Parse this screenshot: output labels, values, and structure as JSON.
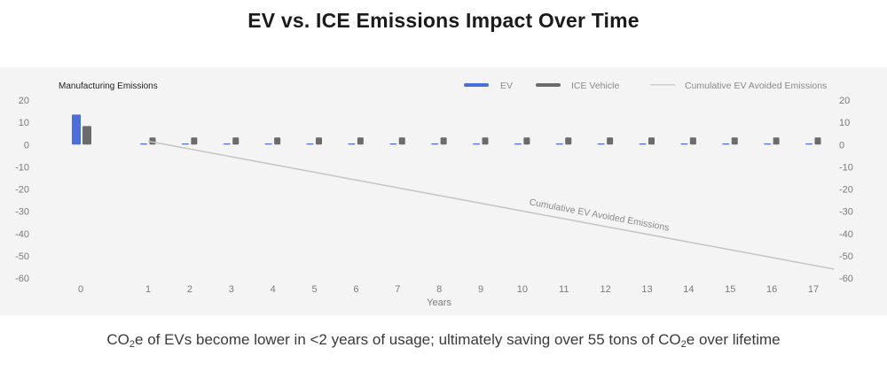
{
  "title": "EV vs. ICE Emissions Impact Over Time",
  "caption": {
    "before": "CO",
    "sub1": "2",
    "mid": "e of EVs become lower in <2 years of usage; ultimately saving over 55 tons of CO",
    "sub2": "2",
    "after": "e over lifetime"
  },
  "chart_data": {
    "type": "bar",
    "manufacturing_label": "Manufacturing Emissions",
    "xlabel": "Years",
    "ylim": [
      -60,
      20
    ],
    "yticks": [
      20,
      10,
      0,
      -10,
      -20,
      -30,
      -40,
      -50,
      -60
    ],
    "categories": [
      "0",
      "1",
      "2",
      "3",
      "4",
      "5",
      "6",
      "7",
      "8",
      "9",
      "10",
      "11",
      "12",
      "13",
      "14",
      "15",
      "16",
      "17"
    ],
    "series": [
      {
        "name": "EV",
        "color": "#4a6fdc",
        "values": [
          13.5,
          0.5,
          0.5,
          0.5,
          0.5,
          0.5,
          0.5,
          0.5,
          0.5,
          0.5,
          0.5,
          0.5,
          0.5,
          0.5,
          0.5,
          0.5,
          0.5,
          0.5
        ]
      },
      {
        "name": "ICE Vehicle",
        "color": "#6b6b6b",
        "values": [
          8.3,
          3.2,
          3.2,
          3.2,
          3.2,
          3.2,
          3.2,
          3.2,
          3.2,
          3.2,
          3.2,
          3.2,
          3.2,
          3.2,
          3.2,
          3.2,
          3.2,
          3.2
        ]
      }
    ],
    "line": {
      "name": "Cumulative EV Avoided Emissions",
      "annotation": "Cumulative EV Avoided  Emissions",
      "color": "#c4c4c4",
      "x": [
        1,
        17.5
      ],
      "y": [
        1.5,
        -56
      ]
    },
    "legend_position": "top-right",
    "grid": false
  }
}
